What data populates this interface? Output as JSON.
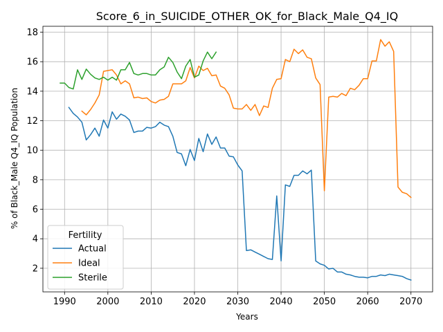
{
  "chart_data": {
    "type": "line",
    "title": "Score_6_in_SUICIDE_OTHER_OK_for_Black_Male_Q4_IQ",
    "xlabel": "Years",
    "ylabel": "% of Black_Male Q4_IQ Population",
    "xlim": [
      1985,
      2075
    ],
    "ylim": [
      0.4,
      18.4
    ],
    "xticks": [
      1990,
      2000,
      2010,
      2020,
      2030,
      2040,
      2050,
      2060,
      2070
    ],
    "yticks": [
      2,
      4,
      6,
      8,
      10,
      12,
      14,
      16,
      18
    ],
    "grid": true,
    "legend": {
      "title": "Fertility",
      "position": "lower-left"
    },
    "series": [
      {
        "name": "Actual",
        "color": "#1f77b4",
        "x": [
          1991,
          1992,
          1993,
          1994,
          1995,
          1996,
          1997,
          1998,
          1999,
          2000,
          2001,
          2002,
          2003,
          2004,
          2005,
          2006,
          2007,
          2008,
          2009,
          2010,
          2011,
          2012,
          2013,
          2014,
          2015,
          2016,
          2017,
          2018,
          2019,
          2020,
          2021,
          2022,
          2023,
          2024,
          2025,
          2026,
          2027,
          2028,
          2029,
          2030,
          2031,
          2032,
          2033,
          2034,
          2035,
          2036,
          2037,
          2038,
          2039,
          2040,
          2041,
          2042,
          2043,
          2044,
          2045,
          2046,
          2047,
          2048,
          2049,
          2050,
          2051,
          2052,
          2053,
          2054,
          2055,
          2056,
          2057,
          2058,
          2059,
          2060,
          2061,
          2062,
          2063,
          2064,
          2065,
          2066,
          2067,
          2068,
          2069,
          2070
        ],
        "y": [
          12.9,
          12.5,
          12.25,
          11.9,
          10.7,
          11.05,
          11.5,
          10.95,
          12.05,
          11.5,
          12.6,
          12.1,
          12.45,
          12.3,
          12.05,
          11.2,
          11.3,
          11.3,
          11.55,
          11.5,
          11.6,
          11.9,
          11.7,
          11.6,
          10.95,
          9.85,
          9.75,
          8.95,
          10.05,
          9.3,
          10.8,
          9.9,
          11.1,
          10.4,
          10.9,
          10.15,
          10.15,
          9.6,
          9.55,
          9.0,
          8.6,
          3.2,
          3.25,
          3.1,
          2.95,
          2.8,
          2.65,
          2.6,
          6.9,
          2.5,
          7.65,
          7.55,
          8.3,
          8.3,
          8.6,
          8.4,
          8.65,
          2.5,
          2.3,
          2.2,
          1.95,
          2.0,
          1.75,
          1.75,
          1.6,
          1.55,
          1.45,
          1.4,
          1.4,
          1.35,
          1.45,
          1.45,
          1.55,
          1.5,
          1.6,
          1.55,
          1.5,
          1.45,
          1.3,
          1.2
        ]
      },
      {
        "name": "Ideal",
        "color": "#ff7f0e",
        "x": [
          1994,
          1995,
          1996,
          1997,
          1998,
          1999,
          2000,
          2001,
          2002,
          2003,
          2004,
          2005,
          2006,
          2007,
          2008,
          2009,
          2010,
          2011,
          2012,
          2013,
          2014,
          2015,
          2016,
          2017,
          2018,
          2019,
          2020,
          2021,
          2022,
          2023,
          2024,
          2025,
          2026,
          2027,
          2028,
          2029,
          2030,
          2031,
          2032,
          2033,
          2034,
          2035,
          2036,
          2037,
          2038,
          2039,
          2040,
          2041,
          2042,
          2043,
          2044,
          2045,
          2046,
          2047,
          2048,
          2049,
          2050,
          2051,
          2052,
          2053,
          2054,
          2055,
          2056,
          2057,
          2058,
          2059,
          2060,
          2061,
          2062,
          2063,
          2064,
          2065,
          2066,
          2067,
          2068,
          2069,
          2070
        ],
        "y": [
          12.65,
          12.4,
          12.75,
          13.2,
          13.75,
          15.35,
          15.4,
          15.45,
          15.1,
          14.5,
          14.7,
          14.5,
          13.55,
          13.6,
          13.5,
          13.55,
          13.3,
          13.2,
          13.4,
          13.45,
          13.65,
          14.5,
          14.5,
          14.5,
          14.7,
          15.6,
          14.9,
          15.7,
          15.4,
          15.55,
          15.05,
          15.1,
          14.35,
          14.2,
          13.75,
          12.85,
          12.8,
          12.8,
          13.1,
          12.7,
          13.1,
          12.35,
          13.0,
          12.9,
          14.2,
          14.8,
          14.85,
          16.15,
          16.0,
          16.85,
          16.55,
          16.8,
          16.3,
          16.2,
          14.9,
          14.45,
          7.25,
          13.6,
          13.65,
          13.6,
          13.85,
          13.7,
          14.2,
          14.1,
          14.4,
          14.85,
          14.85,
          16.05,
          16.05,
          17.5,
          17.05,
          17.35,
          16.7,
          7.5,
          7.15,
          7.05,
          6.8
        ]
      },
      {
        "name": "Sterile",
        "color": "#2ca02c",
        "x": [
          1989,
          1990,
          1991,
          1992,
          1993,
          1994,
          1995,
          1996,
          1997,
          1998,
          1999,
          2000,
          2001,
          2002,
          2003,
          2004,
          2005,
          2006,
          2007,
          2008,
          2009,
          2010,
          2011,
          2012,
          2013,
          2014,
          2015,
          2016,
          2017,
          2018,
          2019,
          2020,
          2021,
          2022,
          2023,
          2024,
          2025
        ],
        "y": [
          14.55,
          14.55,
          14.25,
          14.15,
          15.45,
          14.8,
          15.5,
          15.15,
          14.9,
          14.8,
          14.95,
          14.75,
          14.95,
          14.75,
          15.45,
          15.45,
          15.95,
          15.2,
          15.1,
          15.2,
          15.2,
          15.1,
          15.1,
          15.45,
          15.65,
          16.3,
          15.95,
          15.3,
          14.85,
          15.7,
          16.15,
          14.95,
          15.1,
          16.05,
          16.65,
          16.2,
          16.65
        ]
      }
    ]
  }
}
